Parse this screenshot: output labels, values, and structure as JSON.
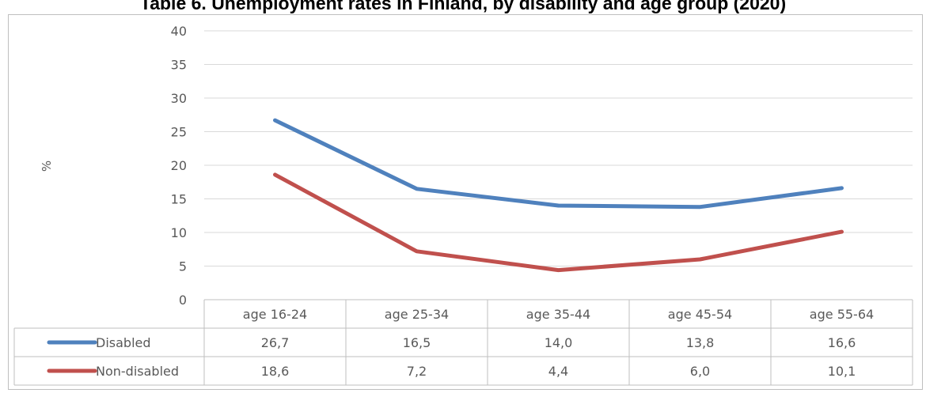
{
  "chart_data": {
    "type": "line",
    "title": "Table 6. Unemployment rates in Finland, by disability and age group (2020)",
    "ylabel": "%",
    "xlabel": "",
    "ylim": [
      0,
      40
    ],
    "yticks": [
      "0",
      "5",
      "10",
      "15",
      "20",
      "25",
      "30",
      "35",
      "40"
    ],
    "grid": true,
    "legend": "data-table",
    "categories": [
      "age 16-24",
      "age 25-34",
      "age 35-44",
      "age 45-54",
      "age 55-64"
    ],
    "series": [
      {
        "name": "Disabled",
        "color": "#4f81bd",
        "values": [
          26.7,
          16.5,
          14.0,
          13.8,
          16.6
        ],
        "labels": [
          "26,7",
          "16,5",
          "14,0",
          "13,8",
          "16,6"
        ]
      },
      {
        "name": "Non-disabled",
        "color": "#c0504d",
        "values": [
          18.6,
          7.2,
          4.4,
          6.0,
          10.1
        ],
        "labels": [
          "18,6",
          "7,2",
          "4,4",
          "6,0",
          "10,1"
        ]
      }
    ]
  }
}
